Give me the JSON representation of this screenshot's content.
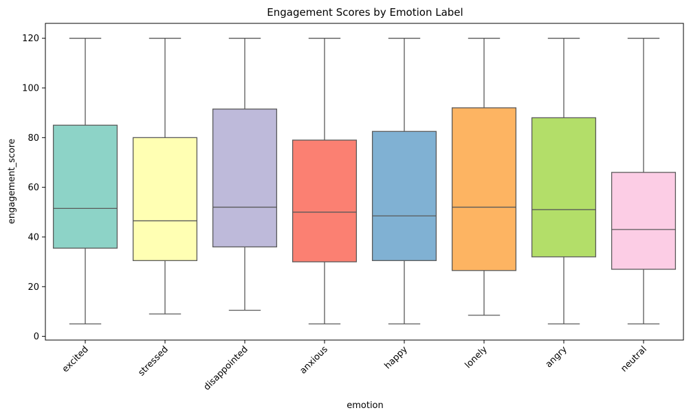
{
  "chart_data": {
    "type": "box",
    "title": "Engagement Scores by Emotion Label",
    "xlabel": "emotion",
    "ylabel": "engagement_score",
    "ylim": [
      -1.5,
      126
    ],
    "yticks": [
      0,
      20,
      40,
      60,
      80,
      100,
      120
    ],
    "grid": false,
    "legend": "none",
    "categories": [
      "excited",
      "stressed",
      "disappointed",
      "anxious",
      "happy",
      "lonely",
      "angry",
      "neutral"
    ],
    "boxes": [
      {
        "category": "excited",
        "whisker_low": 5,
        "q1": 35.5,
        "median": 51.5,
        "q3": 85,
        "whisker_high": 120,
        "color": "#8DD3C7"
      },
      {
        "category": "stressed",
        "whisker_low": 9,
        "q1": 30.5,
        "median": 46.5,
        "q3": 80,
        "whisker_high": 120,
        "color": "#FFFFB3"
      },
      {
        "category": "disappointed",
        "whisker_low": 10.5,
        "q1": 36,
        "median": 52,
        "q3": 91.5,
        "whisker_high": 120,
        "color": "#BEBADA"
      },
      {
        "category": "anxious",
        "whisker_low": 5,
        "q1": 30,
        "median": 50,
        "q3": 79,
        "whisker_high": 120,
        "color": "#FB8072"
      },
      {
        "category": "happy",
        "whisker_low": 5,
        "q1": 30.5,
        "median": 48.5,
        "q3": 82.5,
        "whisker_high": 120,
        "color": "#80B1D3"
      },
      {
        "category": "lonely",
        "whisker_low": 8.5,
        "q1": 26.5,
        "median": 52,
        "q3": 92,
        "whisker_high": 120,
        "color": "#FDB462"
      },
      {
        "category": "angry",
        "whisker_low": 5,
        "q1": 32,
        "median": 51,
        "q3": 88,
        "whisker_high": 120,
        "color": "#B3DE69"
      },
      {
        "category": "neutral",
        "whisker_low": 5,
        "q1": 27,
        "median": 43,
        "q3": 66,
        "whisker_high": 120,
        "color": "#FCCDE5"
      }
    ]
  }
}
